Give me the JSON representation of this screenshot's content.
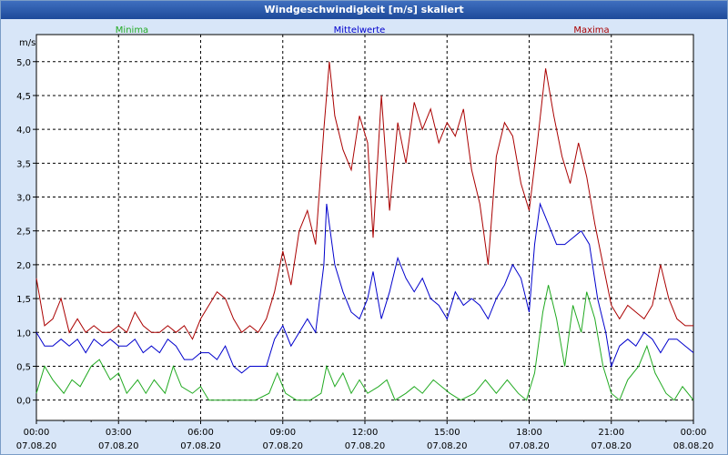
{
  "window": {
    "title": "Windgeschwindigkeit [m/s] skaliert"
  },
  "chart_data": {
    "type": "line",
    "title": "Windgeschwindigkeit [m/s] skaliert",
    "ylabel": "m/s",
    "ylim": [
      -0.3,
      5.4
    ],
    "grid": true,
    "legend_placement": "top",
    "y_ticks": [
      "0,0",
      "0,5",
      "1,0",
      "1,5",
      "2,0",
      "2,5",
      "3,0",
      "3,5",
      "4,0",
      "4,5",
      "5,0"
    ],
    "x_ticks": [
      {
        "time": "00:00",
        "date": "07.08.20"
      },
      {
        "time": "03:00",
        "date": "07.08.20"
      },
      {
        "time": "06:00",
        "date": "07.08.20"
      },
      {
        "time": "09:00",
        "date": "07.08.20"
      },
      {
        "time": "12:00",
        "date": "07.08.20"
      },
      {
        "time": "15:00",
        "date": "07.08.20"
      },
      {
        "time": "18:00",
        "date": "07.08.20"
      },
      {
        "time": "21:00",
        "date": "07.08.20"
      },
      {
        "time": "00:00",
        "date": "08.08.20"
      }
    ],
    "x_range_hours": [
      0,
      24
    ],
    "series": [
      {
        "name": "Minima",
        "color": "#22aa22",
        "points": [
          [
            0,
            0.1
          ],
          [
            0.3,
            0.5
          ],
          [
            0.6,
            0.3
          ],
          [
            1.0,
            0.1
          ],
          [
            1.3,
            0.3
          ],
          [
            1.6,
            0.2
          ],
          [
            2.0,
            0.5
          ],
          [
            2.3,
            0.6
          ],
          [
            2.7,
            0.3
          ],
          [
            3.0,
            0.4
          ],
          [
            3.3,
            0.1
          ],
          [
            3.7,
            0.3
          ],
          [
            4.0,
            0.1
          ],
          [
            4.3,
            0.3
          ],
          [
            4.7,
            0.1
          ],
          [
            5.0,
            0.5
          ],
          [
            5.3,
            0.2
          ],
          [
            5.7,
            0.1
          ],
          [
            6.0,
            0.2
          ],
          [
            6.3,
            0.0
          ],
          [
            7.0,
            0.0
          ],
          [
            8.0,
            0.0
          ],
          [
            8.5,
            0.1
          ],
          [
            8.8,
            0.4
          ],
          [
            9.1,
            0.1
          ],
          [
            9.5,
            0.0
          ],
          [
            10.0,
            0.0
          ],
          [
            10.4,
            0.1
          ],
          [
            10.6,
            0.5
          ],
          [
            10.9,
            0.2
          ],
          [
            11.2,
            0.4
          ],
          [
            11.5,
            0.1
          ],
          [
            11.8,
            0.3
          ],
          [
            12.1,
            0.1
          ],
          [
            12.5,
            0.2
          ],
          [
            12.8,
            0.3
          ],
          [
            13.1,
            0.0
          ],
          [
            13.5,
            0.1
          ],
          [
            13.8,
            0.2
          ],
          [
            14.1,
            0.1
          ],
          [
            14.5,
            0.3
          ],
          [
            14.8,
            0.2
          ],
          [
            15.1,
            0.1
          ],
          [
            15.5,
            0.0
          ],
          [
            16.0,
            0.1
          ],
          [
            16.4,
            0.3
          ],
          [
            16.8,
            0.1
          ],
          [
            17.2,
            0.3
          ],
          [
            17.6,
            0.1
          ],
          [
            17.9,
            0.0
          ],
          [
            18.2,
            0.4
          ],
          [
            18.5,
            1.3
          ],
          [
            18.7,
            1.7
          ],
          [
            19.0,
            1.2
          ],
          [
            19.3,
            0.5
          ],
          [
            19.6,
            1.4
          ],
          [
            19.9,
            1.0
          ],
          [
            20.1,
            1.6
          ],
          [
            20.4,
            1.2
          ],
          [
            20.7,
            0.5
          ],
          [
            21.0,
            0.1
          ],
          [
            21.3,
            0.0
          ],
          [
            21.6,
            0.3
          ],
          [
            22.0,
            0.5
          ],
          [
            22.3,
            0.8
          ],
          [
            22.6,
            0.4
          ],
          [
            23.0,
            0.1
          ],
          [
            23.3,
            0.0
          ],
          [
            23.6,
            0.2
          ],
          [
            24.0,
            0.0
          ]
        ]
      },
      {
        "name": "Mittelwerte",
        "color": "#0000cc",
        "points": [
          [
            0,
            1.0
          ],
          [
            0.3,
            0.8
          ],
          [
            0.6,
            0.8
          ],
          [
            0.9,
            0.9
          ],
          [
            1.2,
            0.8
          ],
          [
            1.5,
            0.9
          ],
          [
            1.8,
            0.7
          ],
          [
            2.1,
            0.9
          ],
          [
            2.4,
            0.8
          ],
          [
            2.7,
            0.9
          ],
          [
            3.0,
            0.8
          ],
          [
            3.3,
            0.8
          ],
          [
            3.6,
            0.9
          ],
          [
            3.9,
            0.7
          ],
          [
            4.2,
            0.8
          ],
          [
            4.5,
            0.7
          ],
          [
            4.8,
            0.9
          ],
          [
            5.1,
            0.8
          ],
          [
            5.4,
            0.6
          ],
          [
            5.7,
            0.6
          ],
          [
            6.0,
            0.7
          ],
          [
            6.3,
            0.7
          ],
          [
            6.6,
            0.6
          ],
          [
            6.9,
            0.8
          ],
          [
            7.2,
            0.5
          ],
          [
            7.5,
            0.4
          ],
          [
            7.8,
            0.5
          ],
          [
            8.1,
            0.5
          ],
          [
            8.4,
            0.5
          ],
          [
            8.7,
            0.9
          ],
          [
            9.0,
            1.1
          ],
          [
            9.3,
            0.8
          ],
          [
            9.6,
            1.0
          ],
          [
            9.9,
            1.2
          ],
          [
            10.2,
            1.0
          ],
          [
            10.5,
            2.0
          ],
          [
            10.6,
            2.9
          ],
          [
            10.9,
            2.0
          ],
          [
            11.2,
            1.6
          ],
          [
            11.5,
            1.3
          ],
          [
            11.8,
            1.2
          ],
          [
            12.1,
            1.5
          ],
          [
            12.3,
            1.9
          ],
          [
            12.6,
            1.2
          ],
          [
            12.9,
            1.6
          ],
          [
            13.2,
            2.1
          ],
          [
            13.5,
            1.8
          ],
          [
            13.8,
            1.6
          ],
          [
            14.1,
            1.8
          ],
          [
            14.4,
            1.5
          ],
          [
            14.7,
            1.4
          ],
          [
            15.0,
            1.2
          ],
          [
            15.3,
            1.6
          ],
          [
            15.6,
            1.4
          ],
          [
            15.9,
            1.5
          ],
          [
            16.2,
            1.4
          ],
          [
            16.5,
            1.2
          ],
          [
            16.8,
            1.5
          ],
          [
            17.1,
            1.7
          ],
          [
            17.4,
            2.0
          ],
          [
            17.7,
            1.8
          ],
          [
            18.0,
            1.3
          ],
          [
            18.2,
            2.3
          ],
          [
            18.4,
            2.9
          ],
          [
            18.7,
            2.6
          ],
          [
            19.0,
            2.3
          ],
          [
            19.3,
            2.3
          ],
          [
            19.6,
            2.4
          ],
          [
            19.9,
            2.5
          ],
          [
            20.2,
            2.3
          ],
          [
            20.5,
            1.5
          ],
          [
            20.8,
            1.0
          ],
          [
            21.0,
            0.5
          ],
          [
            21.3,
            0.8
          ],
          [
            21.6,
            0.9
          ],
          [
            21.9,
            0.8
          ],
          [
            22.2,
            1.0
          ],
          [
            22.5,
            0.9
          ],
          [
            22.8,
            0.7
          ],
          [
            23.1,
            0.9
          ],
          [
            23.4,
            0.9
          ],
          [
            23.7,
            0.8
          ],
          [
            24.0,
            0.7
          ]
        ]
      },
      {
        "name": "Maxima",
        "color": "#aa0000",
        "points": [
          [
            0,
            1.8
          ],
          [
            0.3,
            1.1
          ],
          [
            0.6,
            1.2
          ],
          [
            0.9,
            1.5
          ],
          [
            1.2,
            1.0
          ],
          [
            1.5,
            1.2
          ],
          [
            1.8,
            1.0
          ],
          [
            2.1,
            1.1
          ],
          [
            2.4,
            1.0
          ],
          [
            2.7,
            1.0
          ],
          [
            3.0,
            1.1
          ],
          [
            3.3,
            1.0
          ],
          [
            3.6,
            1.3
          ],
          [
            3.9,
            1.1
          ],
          [
            4.2,
            1.0
          ],
          [
            4.5,
            1.0
          ],
          [
            4.8,
            1.1
          ],
          [
            5.1,
            1.0
          ],
          [
            5.4,
            1.1
          ],
          [
            5.7,
            0.9
          ],
          [
            6.0,
            1.2
          ],
          [
            6.3,
            1.4
          ],
          [
            6.6,
            1.6
          ],
          [
            6.9,
            1.5
          ],
          [
            7.2,
            1.2
          ],
          [
            7.5,
            1.0
          ],
          [
            7.8,
            1.1
          ],
          [
            8.1,
            1.0
          ],
          [
            8.4,
            1.2
          ],
          [
            8.7,
            1.6
          ],
          [
            9.0,
            2.2
          ],
          [
            9.3,
            1.7
          ],
          [
            9.6,
            2.5
          ],
          [
            9.9,
            2.8
          ],
          [
            10.2,
            2.3
          ],
          [
            10.5,
            4.0
          ],
          [
            10.7,
            5.0
          ],
          [
            10.9,
            4.2
          ],
          [
            11.2,
            3.7
          ],
          [
            11.5,
            3.4
          ],
          [
            11.8,
            4.2
          ],
          [
            12.1,
            3.8
          ],
          [
            12.3,
            2.4
          ],
          [
            12.6,
            4.5
          ],
          [
            12.9,
            2.8
          ],
          [
            13.2,
            4.1
          ],
          [
            13.5,
            3.5
          ],
          [
            13.8,
            4.4
          ],
          [
            14.1,
            4.0
          ],
          [
            14.4,
            4.3
          ],
          [
            14.7,
            3.8
          ],
          [
            15.0,
            4.1
          ],
          [
            15.3,
            3.9
          ],
          [
            15.6,
            4.3
          ],
          [
            15.9,
            3.4
          ],
          [
            16.2,
            2.9
          ],
          [
            16.5,
            2.0
          ],
          [
            16.8,
            3.6
          ],
          [
            17.1,
            4.1
          ],
          [
            17.4,
            3.9
          ],
          [
            17.7,
            3.2
          ],
          [
            18.0,
            2.8
          ],
          [
            18.3,
            3.8
          ],
          [
            18.6,
            4.9
          ],
          [
            18.9,
            4.2
          ],
          [
            19.2,
            3.6
          ],
          [
            19.5,
            3.2
          ],
          [
            19.8,
            3.8
          ],
          [
            20.1,
            3.3
          ],
          [
            20.4,
            2.6
          ],
          [
            20.7,
            2.0
          ],
          [
            21.0,
            1.4
          ],
          [
            21.3,
            1.2
          ],
          [
            21.6,
            1.4
          ],
          [
            21.9,
            1.3
          ],
          [
            22.2,
            1.2
          ],
          [
            22.5,
            1.4
          ],
          [
            22.8,
            2.0
          ],
          [
            23.1,
            1.5
          ],
          [
            23.4,
            1.2
          ],
          [
            23.7,
            1.1
          ],
          [
            24.0,
            1.1
          ]
        ]
      }
    ]
  }
}
